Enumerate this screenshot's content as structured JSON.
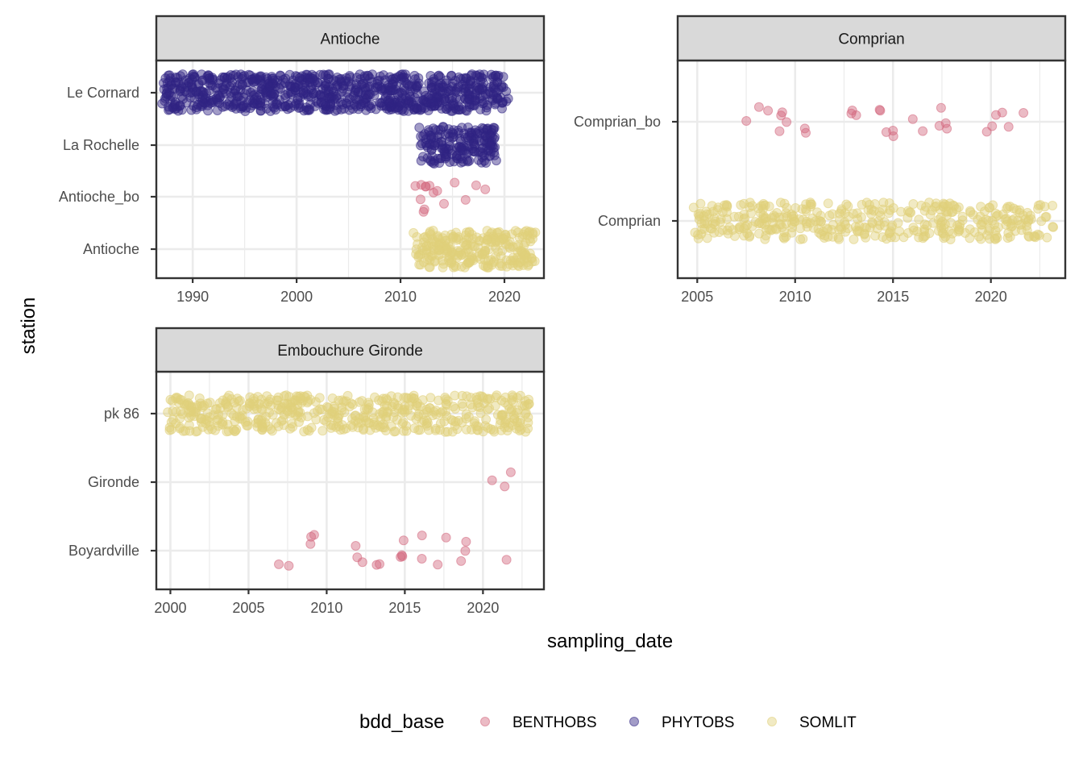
{
  "chart_data": {
    "type": "scatter",
    "xlabel": "sampling_date",
    "ylabel": "station",
    "legend": {
      "title": "bdd_base",
      "placement": "bottom",
      "entries": [
        {
          "name": "BENTHOBS",
          "color": "#d3697f"
        },
        {
          "name": "PHYTOBS",
          "color": "#302483"
        },
        {
          "name": "SOMLIT",
          "color": "#e0d07a"
        }
      ]
    },
    "grid": true,
    "panels": [
      {
        "title": "Antioche",
        "xlim": [
          1986.5,
          2023.8
        ],
        "xticks": [
          1990,
          2000,
          2010,
          2020
        ],
        "stations": [
          "Antioche",
          "Antioche_bo",
          "La Rochelle",
          "Le Cornard"
        ],
        "series": [
          {
            "name": "PHYTOBS",
            "station": "Le Cornard",
            "date_range": [
              1987.2,
              2020.2
            ]
          },
          {
            "name": "PHYTOBS",
            "station": "La Rochelle",
            "date_range": [
              2012.0,
              2019.1
            ]
          },
          {
            "name": "BENTHOBS",
            "station": "Antioche_bo",
            "dates": [
              2011.7,
              2011.9,
              2012.0,
              2012.1,
              2012.2,
              2012.3,
              2012.4,
              2012.6,
              2012.9,
              2013.3,
              2014.4,
              2015.3,
              2016.2,
              2017.1,
              2018.3
            ]
          },
          {
            "name": "SOMLIT",
            "station": "Antioche",
            "date_range": [
              2011.4,
              2023.0
            ]
          }
        ]
      },
      {
        "title": "Comprian",
        "xlim": [
          2004.0,
          2023.8
        ],
        "xticks": [
          2005,
          2010,
          2015,
          2020
        ],
        "stations": [
          "Comprian",
          "Comprian_bo"
        ],
        "series": [
          {
            "name": "BENTHOBS",
            "station": "Comprian_bo",
            "dates": [
              2007.8,
              2007.9,
              2008.9,
              2009.0,
              2009.1,
              2009.4,
              2009.6,
              2010.2,
              2010.3,
              2013.0,
              2013.1,
              2013.2,
              2014.3,
              2014.4,
              2014.6,
              2014.8,
              2014.9,
              2016.3,
              2016.4,
              2017.3,
              2017.4,
              2017.6,
              2017.7,
              2019.9,
              2020.0,
              2020.1,
              2020.5,
              2021.0,
              2021.9
            ]
          },
          {
            "name": "SOMLIT",
            "station": "Comprian",
            "date_range": [
              2005.0,
              2023.0
            ]
          }
        ]
      },
      {
        "title": "Embouchure Gironde",
        "xlim": [
          1999.1,
          2023.9
        ],
        "xticks": [
          2000,
          2005,
          2010,
          2015,
          2020
        ],
        "stations": [
          "Boyardville",
          "Gironde",
          "pk 86"
        ],
        "series": [
          {
            "name": "SOMLIT",
            "station": "pk 86",
            "date_range": [
              2000.0,
              2023.0
            ]
          },
          {
            "name": "BENTHOBS",
            "station": "Gironde",
            "dates": [
              2020.8,
              2021.3,
              2021.8
            ]
          },
          {
            "name": "BENTHOBS",
            "station": "Boyardville",
            "dates": [
              2007.2,
              2007.3,
              2008.8,
              2009.0,
              2009.2,
              2011.8,
              2012.0,
              2012.2,
              2013.2,
              2013.4,
              2014.6,
              2014.8,
              2015.0,
              2015.1,
              2016.0,
              2016.1,
              2017.2,
              2017.4,
              2018.8,
              2018.9,
              2019.0,
              2021.5
            ]
          }
        ]
      }
    ]
  }
}
